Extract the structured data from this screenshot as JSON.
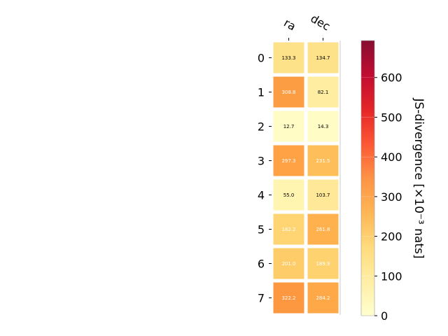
{
  "chart_data": {
    "type": "heatmap",
    "columns": [
      "ra",
      "dec"
    ],
    "rows": [
      "0",
      "1",
      "2",
      "3",
      "4",
      "5",
      "6",
      "7"
    ],
    "values": [
      [
        133.3,
        134.7
      ],
      [
        308.8,
        82.1
      ],
      [
        12.7,
        14.3
      ],
      [
        297.3,
        231.5
      ],
      [
        55.0,
        103.7
      ],
      [
        182.2,
        261.8
      ],
      [
        201.0,
        189.9
      ],
      [
        322.2,
        284.2
      ]
    ],
    "value_labels": [
      [
        "133.3",
        "134.7"
      ],
      [
        "308.8",
        "82.1"
      ],
      [
        "12.7",
        "14.3"
      ],
      [
        "297.3",
        "231.5"
      ],
      [
        "55.0",
        "103.7"
      ],
      [
        "182.2",
        "261.8"
      ],
      [
        "201.0",
        "189.9"
      ],
      [
        "322.2",
        "284.2"
      ]
    ],
    "colorbar": {
      "label": "JS-divergence [×10⁻³ nats]",
      "range": [
        0,
        693
      ],
      "ticks": [
        0,
        100,
        200,
        300,
        400,
        500,
        600
      ],
      "colormap": "YlOrRd"
    },
    "colors": {
      "colormap_stops": [
        "#ffffcc",
        "#ffeda0",
        "#fed976",
        "#feb24c",
        "#fd8d3c",
        "#fc4e2a",
        "#e31a1c",
        "#bd0026",
        "#800026"
      ],
      "label_dark": "#000000",
      "label_light": "#ffffff"
    }
  }
}
